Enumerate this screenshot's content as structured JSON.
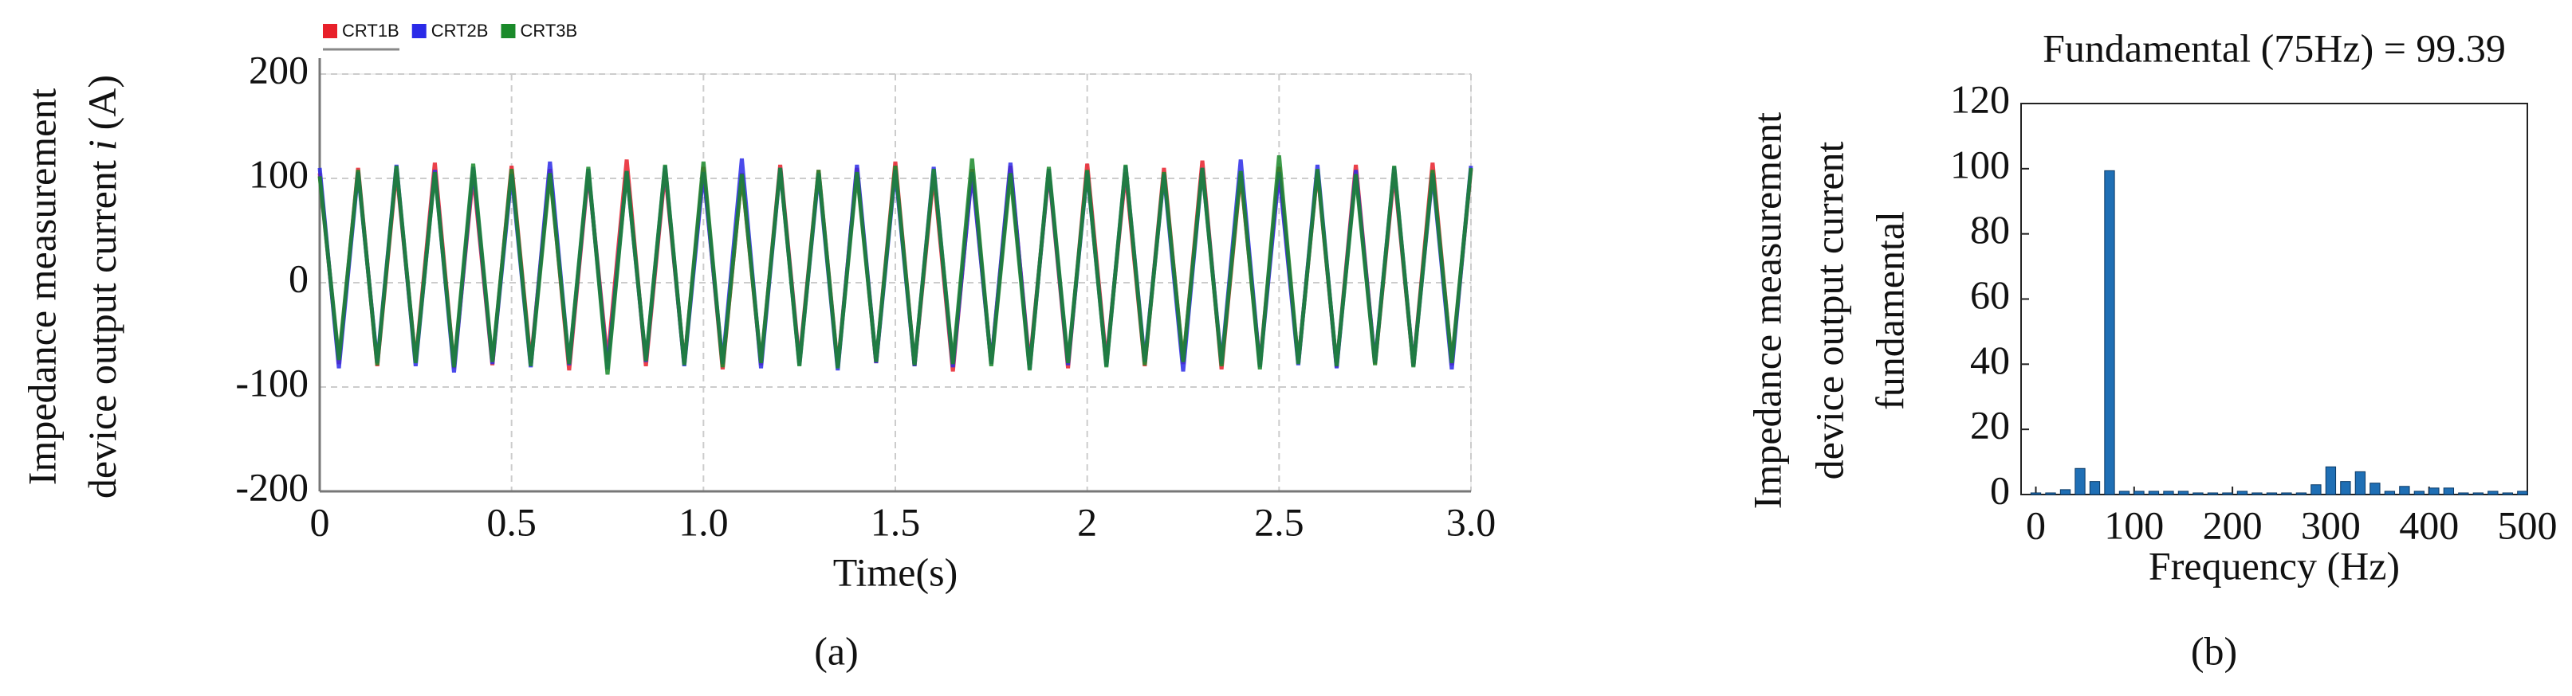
{
  "chart_data": [
    {
      "type": "line",
      "panel_label": "(a)",
      "ylabel": [
        "Impedance measurement",
        "device output current",
        "i",
        "(A)"
      ],
      "xlabel": "Time(s)",
      "xlim": [
        0,
        3
      ],
      "ylim": [
        -200,
        200
      ],
      "xticks": [
        0,
        0.5,
        {
          "value": 1,
          "label": "1.0"
        },
        1.5,
        2,
        2.5,
        {
          "value": 3,
          "label": "3.0"
        }
      ],
      "yticks": [
        -200,
        -100,
        0,
        100,
        200
      ],
      "grid": true,
      "legend": "upper left",
      "x": [
        0,
        0.05,
        0.1,
        0.15,
        0.2,
        0.25,
        0.3,
        0.35,
        0.4,
        0.45,
        0.5,
        0.55,
        0.6,
        0.65,
        0.7,
        0.75,
        0.8,
        0.85,
        0.9,
        0.95,
        1,
        1.05,
        1.1,
        1.15,
        1.2,
        1.25,
        1.3,
        1.35,
        1.4,
        1.45,
        1.5,
        1.55,
        1.6,
        1.65,
        1.7,
        1.75,
        1.8,
        1.85,
        1.9,
        1.95,
        2,
        2.05,
        2.1,
        2.15,
        2.2,
        2.25,
        2.3,
        2.35,
        2.4,
        2.45,
        2.5,
        2.55,
        2.6,
        2.65,
        2.7,
        2.75,
        2.8,
        2.85,
        2.9,
        2.95,
        3
      ],
      "series": [
        {
          "name": "CRT1B",
          "color": "#e8202a",
          "values": [
            105,
            -78,
            110,
            -80,
            108,
            -76,
            115,
            -82,
            104,
            -79,
            112,
            -77,
            109,
            -84,
            106,
            -75,
            118,
            -80,
            107,
            -78,
            111,
            -83,
            105,
            -79,
            113,
            -76,
            108,
            -81,
            110,
            -77,
            116,
            -80,
            104,
            -85,
            109,
            -78,
            112,
            -79,
            107,
            -82,
            114,
            -76,
            106,
            -80,
            110,
            -78,
            117,
            -83,
            105,
            -79,
            111,
            -77,
            108,
            -81,
            113,
            -78,
            106,
            -80,
            115,
            -79,
            109
          ]
        },
        {
          "name": "CRT2B",
          "color": "#2a2ae8",
          "values": [
            110,
            -82,
            106,
            -77,
            113,
            -80,
            108,
            -86,
            111,
            -78,
            104,
            -81,
            116,
            -79,
            109,
            -83,
            107,
            -76,
            112,
            -80,
            106,
            -78,
            119,
            -82,
            110,
            -79,
            105,
            -84,
            113,
            -77,
            108,
            -80,
            111,
            -81,
            106,
            -78,
            115,
            -83,
            109,
            -79,
            107,
            -80,
            112,
            -76,
            104,
            -85,
            110,
            -78,
            118,
            -81,
            106,
            -79,
            113,
            -82,
            108,
            -77,
            111,
            -80,
            105,
            -83,
            112
          ]
        },
        {
          "name": "CRT3B",
          "color": "#1a8a2a",
          "values": [
            102,
            -74,
            108,
            -79,
            112,
            -77,
            106,
            -81,
            114,
            -76,
            109,
            -80,
            105,
            -78,
            111,
            -88,
            107,
            -75,
            113,
            -79,
            116,
            -81,
            104,
            -77,
            110,
            -80,
            108,
            -82,
            106,
            -76,
            112,
            -79,
            109,
            -78,
            119,
            -80,
            105,
            -84,
            111,
            -77,
            108,
            -81,
            113,
            -79,
            106,
            -76,
            110,
            -80,
            107,
            -83,
            122,
            -78,
            109,
            -80,
            104,
            -79,
            112,
            -81,
            108,
            -77,
            110
          ]
        }
      ]
    },
    {
      "type": "bar",
      "panel_label": "(b)",
      "title": "Fundamental (75Hz) = 99.39",
      "ylabel": [
        "Impedance measurement",
        "device output current",
        "fundamental"
      ],
      "xlabel": "Frequency (Hz)",
      "xlim": [
        -15,
        500
      ],
      "ylim": [
        0,
        120
      ],
      "xticks": [
        0,
        100,
        200,
        300,
        400,
        500
      ],
      "yticks": [
        0,
        20,
        40,
        60,
        80,
        100,
        120
      ],
      "grid": false,
      "color": "#1f6fb5",
      "x": [
        0,
        15,
        30,
        45,
        60,
        75,
        90,
        105,
        120,
        135,
        150,
        165,
        180,
        195,
        210,
        225,
        240,
        255,
        270,
        285,
        300,
        315,
        330,
        345,
        360,
        375,
        390,
        405,
        420,
        435,
        450,
        465,
        480,
        495
      ],
      "values": [
        0.5,
        0.5,
        1.5,
        8,
        4,
        99.39,
        1,
        1,
        1,
        1,
        1,
        0.5,
        0.5,
        0.5,
        1,
        0.5,
        0.5,
        0.5,
        0.5,
        3,
        8.5,
        4,
        7,
        3.5,
        1,
        2.5,
        1,
        2,
        2,
        0.5,
        0.5,
        1,
        0.5,
        1
      ]
    }
  ]
}
